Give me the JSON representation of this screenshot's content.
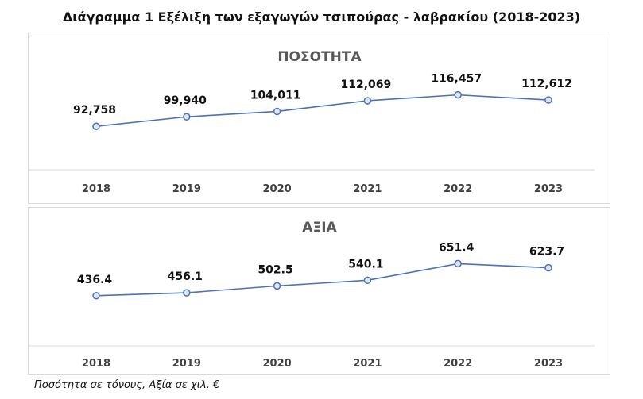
{
  "title": "Διάγραμμα 1 Εξέλιξη των εξαγωγών τσιπούρας - λαβρακίου (2018-2023)",
  "footnote": "Ποσότητα σε τόνους, Αξία σε χιλ. €",
  "colors": {
    "line": "#4a72b8",
    "marker_fill": "#dfe6f3",
    "axis": "#d9d9d9"
  },
  "chart_data": [
    {
      "type": "line",
      "title": "ΠΟΣΟΤΗΤΑ",
      "categories": [
        "2018",
        "2019",
        "2020",
        "2021",
        "2022",
        "2023"
      ],
      "values": [
        92758,
        99940,
        104011,
        112069,
        116457,
        112612
      ],
      "value_labels": [
        "92,758",
        "99,940",
        "104,011",
        "112,069",
        "116,457",
        "112,612"
      ],
      "ylim": [
        60000,
        130000
      ],
      "grid": false,
      "legend": "none"
    },
    {
      "type": "line",
      "title": "ΑΞΙΑ",
      "categories": [
        "2018",
        "2019",
        "2020",
        "2021",
        "2022",
        "2023"
      ],
      "values": [
        436.4,
        456.1,
        502.5,
        540.1,
        651.4,
        623.7
      ],
      "value_labels": [
        "436.4",
        "456.1",
        "502.5",
        "540.1",
        "651.4",
        "623.7"
      ],
      "ylim": [
        100,
        760
      ],
      "grid": false,
      "legend": "none"
    }
  ]
}
